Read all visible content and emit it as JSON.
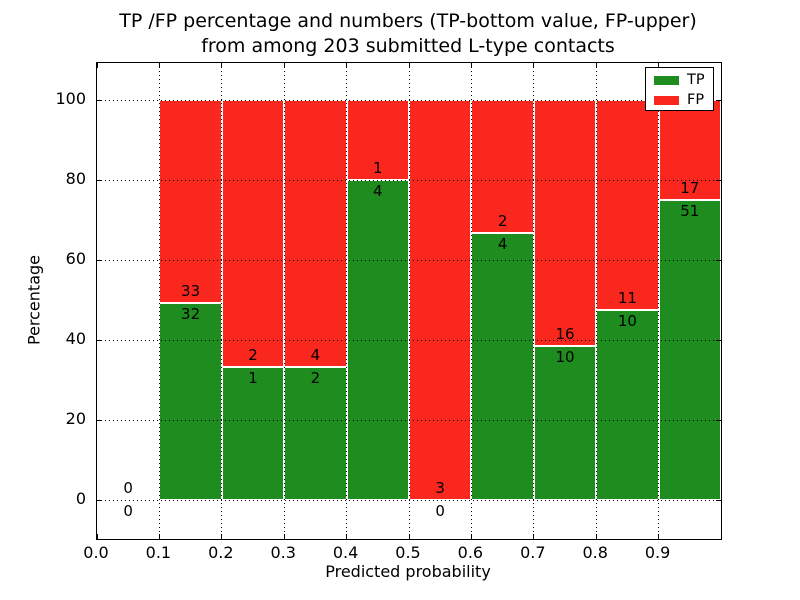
{
  "figure": {
    "title_line1": "TP /FP percentage and numbers (TP-bottom value, FP-upper)",
    "title_line2": "from among 203 submitted L-type contacts"
  },
  "chart_data": {
    "type": "bar",
    "subtype": "stacked-percentage-histogram",
    "title": "TP /FP percentage and numbers (TP-bottom value, FP-upper)\nfrom among 203 submitted L-type contacts",
    "xlabel": "Predicted probability",
    "ylabel": "Percentage",
    "x_tick_labels": [
      "0.0",
      "0.1",
      "0.2",
      "0.3",
      "0.4",
      "0.5",
      "0.6",
      "0.7",
      "0.8",
      "0.9"
    ],
    "y_ticks": [
      0,
      20,
      40,
      60,
      80,
      100
    ],
    "y_tick_labels": [
      "0",
      "20",
      "40",
      "60",
      "80",
      "100"
    ],
    "xlim": [
      0.0,
      1.0
    ],
    "ylim": [
      -9.75,
      109.25
    ],
    "grid": "dotted black, both axes, drawn above bars",
    "total_contacts": 203,
    "colors": {
      "tp": "#1e8c1e",
      "fp": "#f9271d",
      "bar_edge": "#ffffff"
    },
    "legend": {
      "position": "upper right",
      "entries": [
        {
          "label": "TP",
          "color": "#1e8c1e"
        },
        {
          "label": "FP",
          "color": "#f9271d"
        }
      ]
    },
    "bins": [
      {
        "x0": 0.0,
        "x1": 0.1,
        "tp": 0,
        "fp": 0
      },
      {
        "x0": 0.1,
        "x1": 0.2,
        "tp": 32,
        "fp": 33
      },
      {
        "x0": 0.2,
        "x1": 0.3,
        "tp": 1,
        "fp": 2
      },
      {
        "x0": 0.3,
        "x1": 0.4,
        "tp": 2,
        "fp": 4
      },
      {
        "x0": 0.4,
        "x1": 0.5,
        "tp": 4,
        "fp": 1
      },
      {
        "x0": 0.5,
        "x1": 0.6,
        "tp": 0,
        "fp": 3
      },
      {
        "x0": 0.6,
        "x1": 0.7,
        "tp": 4,
        "fp": 2
      },
      {
        "x0": 0.7,
        "x1": 0.8,
        "tp": 10,
        "fp": 16
      },
      {
        "x0": 0.8,
        "x1": 0.9,
        "tp": 10,
        "fp": 11
      },
      {
        "x0": 0.9,
        "x1": 1.0,
        "tp": 51,
        "fp": 17
      }
    ]
  }
}
